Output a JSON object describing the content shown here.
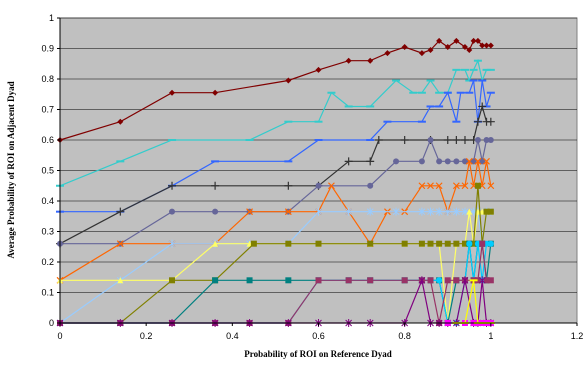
{
  "chart_data": {
    "type": "line",
    "title": "",
    "xlabel": "Probability of ROI on Reference Dyad",
    "ylabel": "Average Probability of ROI on Adjacent Dyad",
    "xlim": [
      0,
      1.2
    ],
    "ylim": [
      0,
      1
    ],
    "xticks": [
      "0",
      "0.2",
      "0.4",
      "0.6",
      "0.8",
      "1",
      "1.2"
    ],
    "yticks": [
      "0",
      "0.1",
      "0.2",
      "0.3",
      "0.4",
      "0.5",
      "0.6",
      "0.7",
      "0.8",
      "0.9",
      "1"
    ],
    "plot_background": "#c0c0c0",
    "grid": "horizontal",
    "legend": "none",
    "series": [
      {
        "color": "#800000",
        "marker": "diamond",
        "points": [
          [
            0,
            0.6
          ],
          [
            0.14,
            0.66
          ],
          [
            0.26,
            0.755
          ],
          [
            0.36,
            0.755
          ],
          [
            0.53,
            0.795
          ],
          [
            0.6,
            0.83
          ],
          [
            0.67,
            0.86
          ],
          [
            0.72,
            0.86
          ],
          [
            0.76,
            0.885
          ],
          [
            0.8,
            0.905
          ],
          [
            0.84,
            0.885
          ],
          [
            0.86,
            0.895
          ],
          [
            0.88,
            0.925
          ],
          [
            0.9,
            0.905
          ],
          [
            0.92,
            0.925
          ],
          [
            0.94,
            0.905
          ],
          [
            0.95,
            0.895
          ],
          [
            0.96,
            0.925
          ],
          [
            0.97,
            0.925
          ],
          [
            0.98,
            0.91
          ],
          [
            0.99,
            0.91
          ],
          [
            1.0,
            0.91
          ]
        ]
      },
      {
        "color": "#33cccc",
        "marker": "dash",
        "points": [
          [
            0,
            0.45
          ],
          [
            0.14,
            0.53
          ],
          [
            0.26,
            0.6
          ],
          [
            0.44,
            0.6
          ],
          [
            0.53,
            0.66
          ],
          [
            0.6,
            0.66
          ],
          [
            0.63,
            0.755
          ],
          [
            0.67,
            0.71
          ],
          [
            0.72,
            0.71
          ],
          [
            0.78,
            0.795
          ],
          [
            0.82,
            0.755
          ],
          [
            0.84,
            0.755
          ],
          [
            0.86,
            0.795
          ],
          [
            0.88,
            0.755
          ],
          [
            0.9,
            0.755
          ],
          [
            0.92,
            0.83
          ],
          [
            0.94,
            0.83
          ],
          [
            0.95,
            0.795
          ],
          [
            0.96,
            0.83
          ],
          [
            0.97,
            0.86
          ],
          [
            0.98,
            0.795
          ],
          [
            0.99,
            0.83
          ],
          [
            1.0,
            0.83
          ]
        ]
      },
      {
        "color": "#3366ff",
        "marker": "dash",
        "points": [
          [
            0,
            0.365
          ],
          [
            0.14,
            0.365
          ],
          [
            0.26,
            0.45
          ],
          [
            0.36,
            0.53
          ],
          [
            0.53,
            0.53
          ],
          [
            0.6,
            0.6
          ],
          [
            0.72,
            0.6
          ],
          [
            0.76,
            0.66
          ],
          [
            0.84,
            0.66
          ],
          [
            0.86,
            0.71
          ],
          [
            0.88,
            0.71
          ],
          [
            0.9,
            0.755
          ],
          [
            0.92,
            0.66
          ],
          [
            0.93,
            0.755
          ],
          [
            0.95,
            0.755
          ],
          [
            0.96,
            0.795
          ],
          [
            0.97,
            0.66
          ],
          [
            0.98,
            0.795
          ],
          [
            0.99,
            0.71
          ],
          [
            1.0,
            0.755
          ]
        ]
      },
      {
        "color": "#333333",
        "marker": "plus",
        "points": [
          [
            0,
            0.26
          ],
          [
            0.14,
            0.365
          ],
          [
            0.26,
            0.45
          ],
          [
            0.36,
            0.45
          ],
          [
            0.53,
            0.45
          ],
          [
            0.6,
            0.45
          ],
          [
            0.67,
            0.53
          ],
          [
            0.72,
            0.53
          ],
          [
            0.74,
            0.6
          ],
          [
            0.8,
            0.6
          ],
          [
            0.86,
            0.6
          ],
          [
            0.9,
            0.6
          ],
          [
            0.92,
            0.6
          ],
          [
            0.94,
            0.6
          ],
          [
            0.96,
            0.6
          ],
          [
            0.97,
            0.66
          ],
          [
            0.98,
            0.71
          ],
          [
            0.99,
            0.66
          ],
          [
            1.0,
            0.66
          ]
        ]
      },
      {
        "color": "#666699",
        "marker": "circle",
        "points": [
          [
            0,
            0.26
          ],
          [
            0.14,
            0.26
          ],
          [
            0.26,
            0.365
          ],
          [
            0.36,
            0.365
          ],
          [
            0.44,
            0.365
          ],
          [
            0.53,
            0.365
          ],
          [
            0.6,
            0.45
          ],
          [
            0.72,
            0.45
          ],
          [
            0.78,
            0.53
          ],
          [
            0.84,
            0.53
          ],
          [
            0.86,
            0.6
          ],
          [
            0.88,
            0.53
          ],
          [
            0.9,
            0.53
          ],
          [
            0.92,
            0.53
          ],
          [
            0.94,
            0.53
          ],
          [
            0.96,
            0.53
          ],
          [
            0.97,
            0.6
          ],
          [
            0.98,
            0.53
          ],
          [
            0.99,
            0.6
          ],
          [
            1.0,
            0.6
          ]
        ]
      },
      {
        "color": "#ff6600",
        "marker": "x",
        "points": [
          [
            0,
            0.14
          ],
          [
            0.14,
            0.26
          ],
          [
            0.26,
            0.26
          ],
          [
            0.36,
            0.26
          ],
          [
            0.44,
            0.365
          ],
          [
            0.53,
            0.365
          ],
          [
            0.6,
            0.365
          ],
          [
            0.63,
            0.45
          ],
          [
            0.67,
            0.365
          ],
          [
            0.72,
            0.26
          ],
          [
            0.76,
            0.365
          ],
          [
            0.8,
            0.365
          ],
          [
            0.84,
            0.45
          ],
          [
            0.86,
            0.45
          ],
          [
            0.88,
            0.45
          ],
          [
            0.9,
            0.365
          ],
          [
            0.92,
            0.45
          ],
          [
            0.94,
            0.45
          ],
          [
            0.95,
            0.53
          ],
          [
            0.96,
            0.45
          ],
          [
            0.97,
            0.53
          ],
          [
            0.98,
            0.45
          ],
          [
            0.99,
            0.53
          ],
          [
            1.0,
            0.45
          ]
        ]
      },
      {
        "color": "#99ccff",
        "marker": "star",
        "points": [
          [
            0,
            0
          ],
          [
            0.14,
            0.14
          ],
          [
            0.26,
            0.26
          ],
          [
            0.36,
            0.26
          ],
          [
            0.44,
            0.26
          ],
          [
            0.53,
            0.26
          ],
          [
            0.6,
            0.365
          ],
          [
            0.67,
            0.365
          ],
          [
            0.72,
            0.365
          ],
          [
            0.78,
            0.365
          ],
          [
            0.84,
            0.365
          ],
          [
            0.86,
            0.365
          ],
          [
            0.88,
            0.365
          ],
          [
            0.9,
            0.365
          ],
          [
            0.92,
            0.365
          ],
          [
            0.94,
            0.365
          ],
          [
            0.96,
            0.365
          ],
          [
            0.97,
            0.365
          ],
          [
            0.98,
            0.26
          ],
          [
            0.99,
            0.365
          ],
          [
            1.0,
            0.365
          ]
        ]
      },
      {
        "color": "#ffff66",
        "marker": "triangle",
        "points": [
          [
            0,
            0.14
          ],
          [
            0.14,
            0.14
          ],
          [
            0.26,
            0.14
          ],
          [
            0.36,
            0.26
          ],
          [
            0.44,
            0.26
          ],
          [
            0.53,
            0.26
          ],
          [
            0.6,
            0.26
          ],
          [
            0.72,
            0.26
          ],
          [
            0.8,
            0.26
          ],
          [
            0.84,
            0.26
          ],
          [
            0.86,
            0.26
          ],
          [
            0.88,
            0.26
          ],
          [
            0.9,
            0
          ],
          [
            0.92,
            0.26
          ],
          [
            0.94,
            0.26
          ],
          [
            0.95,
            0.365
          ],
          [
            0.96,
            0.26
          ],
          [
            0.97,
            0.365
          ],
          [
            0.98,
            0.365
          ],
          [
            0.99,
            0.365
          ],
          [
            1.0,
            0.365
          ]
        ]
      },
      {
        "color": "#808000",
        "marker": "square",
        "points": [
          [
            0,
            0
          ],
          [
            0.14,
            0
          ],
          [
            0.26,
            0.14
          ],
          [
            0.36,
            0.14
          ],
          [
            0.45,
            0.26
          ],
          [
            0.53,
            0.26
          ],
          [
            0.6,
            0.26
          ],
          [
            0.72,
            0.26
          ],
          [
            0.8,
            0.26
          ],
          [
            0.84,
            0.26
          ],
          [
            0.86,
            0.26
          ],
          [
            0.88,
            0.26
          ],
          [
            0.9,
            0.26
          ],
          [
            0.92,
            0.26
          ],
          [
            0.94,
            0.26
          ],
          [
            0.96,
            0.26
          ],
          [
            0.97,
            0.45
          ],
          [
            0.98,
            0.26
          ],
          [
            0.99,
            0.365
          ],
          [
            1.0,
            0.365
          ]
        ]
      },
      {
        "color": "#008080",
        "marker": "square",
        "points": [
          [
            0,
            0
          ],
          [
            0.14,
            0
          ],
          [
            0.26,
            0
          ],
          [
            0.36,
            0.14
          ],
          [
            0.44,
            0.14
          ],
          [
            0.53,
            0.14
          ],
          [
            0.6,
            0.14
          ],
          [
            0.67,
            0.14
          ],
          [
            0.72,
            0.14
          ],
          [
            0.8,
            0.14
          ],
          [
            0.84,
            0.14
          ],
          [
            0.86,
            0.14
          ],
          [
            0.88,
            0.14
          ],
          [
            0.9,
            0
          ],
          [
            0.92,
            0.14
          ],
          [
            0.94,
            0.14
          ],
          [
            0.95,
            0.26
          ],
          [
            0.96,
            0.14
          ],
          [
            0.97,
            0.26
          ],
          [
            0.98,
            0.26
          ],
          [
            0.99,
            0.14
          ],
          [
            1.0,
            0.26
          ]
        ]
      },
      {
        "color": "#00ccff",
        "marker": "circle",
        "points": [
          [
            0,
            0
          ],
          [
            0.14,
            0
          ],
          [
            0.26,
            0
          ],
          [
            0.36,
            0
          ],
          [
            0.44,
            0
          ],
          [
            0.53,
            0
          ],
          [
            0.6,
            0.14
          ],
          [
            0.67,
            0.14
          ],
          [
            0.72,
            0.14
          ],
          [
            0.8,
            0.14
          ],
          [
            0.84,
            0.14
          ],
          [
            0.86,
            0.14
          ],
          [
            0.88,
            0.14
          ],
          [
            0.9,
            0
          ],
          [
            0.92,
            0
          ],
          [
            0.94,
            0.14
          ],
          [
            0.95,
            0.26
          ],
          [
            0.96,
            0.14
          ],
          [
            0.97,
            0.26
          ],
          [
            0.98,
            0.14
          ],
          [
            0.99,
            0.26
          ],
          [
            1.0,
            0.26
          ]
        ]
      },
      {
        "color": "#993366",
        "marker": "square",
        "points": [
          [
            0,
            0
          ],
          [
            0.14,
            0
          ],
          [
            0.26,
            0
          ],
          [
            0.36,
            0
          ],
          [
            0.44,
            0
          ],
          [
            0.53,
            0
          ],
          [
            0.6,
            0.14
          ],
          [
            0.67,
            0.14
          ],
          [
            0.72,
            0.14
          ],
          [
            0.8,
            0.14
          ],
          [
            0.84,
            0.14
          ],
          [
            0.86,
            0.14
          ],
          [
            0.88,
            0
          ],
          [
            0.9,
            0.14
          ],
          [
            0.92,
            0.14
          ],
          [
            0.94,
            0.14
          ],
          [
            0.96,
            0.14
          ],
          [
            0.97,
            0.14
          ],
          [
            0.98,
            0.26
          ],
          [
            0.99,
            0.14
          ],
          [
            1.0,
            0.14
          ]
        ]
      },
      {
        "color": "#800080",
        "marker": "star",
        "points": [
          [
            0,
            0
          ],
          [
            0.14,
            0
          ],
          [
            0.26,
            0
          ],
          [
            0.36,
            0
          ],
          [
            0.44,
            0
          ],
          [
            0.53,
            0
          ],
          [
            0.6,
            0
          ],
          [
            0.67,
            0
          ],
          [
            0.72,
            0
          ],
          [
            0.8,
            0
          ],
          [
            0.84,
            0.14
          ],
          [
            0.86,
            0
          ],
          [
            0.88,
            0
          ],
          [
            0.9,
            0
          ],
          [
            0.92,
            0
          ],
          [
            0.94,
            0.14
          ],
          [
            0.96,
            0
          ],
          [
            0.97,
            0
          ],
          [
            0.98,
            0.14
          ],
          [
            0.99,
            0
          ],
          [
            1.0,
            0
          ]
        ]
      },
      {
        "color": "#ff00ff",
        "marker": "square",
        "points": [
          [
            0.9,
            0
          ],
          [
            0.94,
            0
          ],
          [
            0.96,
            0
          ],
          [
            0.97,
            0
          ],
          [
            0.98,
            0
          ],
          [
            0.99,
            0
          ],
          [
            1.0,
            0
          ]
        ]
      },
      {
        "color": "#ffff00",
        "marker": "dash",
        "points": [
          [
            0.92,
            0
          ],
          [
            0.94,
            0
          ],
          [
            0.96,
            0.14
          ],
          [
            0.97,
            0
          ],
          [
            0.98,
            0
          ],
          [
            0.99,
            0
          ],
          [
            1.0,
            0
          ]
        ]
      }
    ]
  }
}
